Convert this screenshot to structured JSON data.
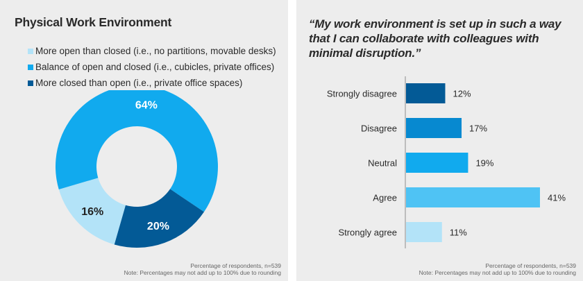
{
  "left": {
    "title": "Physical Work Environment",
    "footnote_line1": "Percentage of respondents, n=539",
    "footnote_line2": "Note: Percentages may not add up to 100% due to rounding"
  },
  "right": {
    "quote": "“My work environment is set up in such a way that I can collaborate with colleagues with minimal disruption.”",
    "footnote_line1": "Percentage of respondents, n=539",
    "footnote_line2": "Note: Percentages may not add up to 100% due to rounding"
  },
  "chart_data": [
    {
      "type": "pie",
      "title": "Physical Work Environment",
      "donut": true,
      "legend": "top-left",
      "categories": [
        "More open than closed (i.e., no partitions, movable desks)",
        "Balance of open and closed (i.e., cubicles, private offices)",
        "More closed than open (i.e., private office spaces)"
      ],
      "values": [
        16,
        64,
        20
      ],
      "labels": [
        "16%",
        "64%",
        "20%"
      ],
      "colors": [
        "#b3e3f8",
        "#11aaee",
        "#035a96"
      ],
      "label_colors": [
        "#222222",
        "#ffffff",
        "#ffffff"
      ]
    },
    {
      "type": "bar",
      "orientation": "horizontal",
      "title": "“My work environment is set up in such a way that I can collaborate with colleagues with minimal disruption.”",
      "categories": [
        "Strongly disagree",
        "Disagree",
        "Neutral",
        "Agree",
        "Strongly agree"
      ],
      "values": [
        12,
        17,
        19,
        41,
        11
      ],
      "labels": [
        "12%",
        "17%",
        "19%",
        "41%",
        "11%"
      ],
      "colors": [
        "#035a96",
        "#0789d0",
        "#11aaee",
        "#4fc3f4",
        "#b3e3f8"
      ],
      "xlim": [
        0,
        44
      ],
      "xlabel": "",
      "ylabel": ""
    }
  ]
}
